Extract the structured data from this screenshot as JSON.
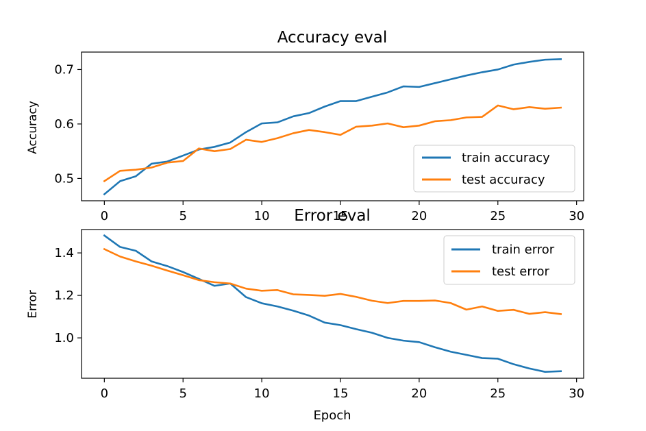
{
  "chart_data": [
    {
      "type": "line",
      "title": "Accuracy eval",
      "xlabel": "",
      "ylabel": "Accuracy",
      "xlim": [
        -1.45,
        30.45
      ],
      "ylim": [
        0.459,
        0.732
      ],
      "xticks": [
        0,
        5,
        10,
        15,
        20,
        25,
        30
      ],
      "xtick_labels": [
        "0",
        "5",
        "10",
        "15",
        "20",
        "25",
        "30"
      ],
      "yticks": [
        0.5,
        0.6,
        0.7
      ],
      "ytick_labels": [
        "0.5",
        "0.6",
        "0.7"
      ],
      "grid": false,
      "legend_position": "lower-right",
      "x": [
        0,
        1,
        2,
        3,
        4,
        5,
        6,
        7,
        8,
        9,
        10,
        11,
        12,
        13,
        14,
        15,
        16,
        17,
        18,
        19,
        20,
        21,
        22,
        23,
        24,
        25,
        26,
        27,
        28,
        29
      ],
      "series": [
        {
          "name": "train accuracy",
          "color": "#1f77b4",
          "values": [
            0.471,
            0.495,
            0.504,
            0.527,
            0.531,
            0.542,
            0.553,
            0.558,
            0.566,
            0.585,
            0.601,
            0.603,
            0.614,
            0.62,
            0.632,
            0.642,
            0.642,
            0.65,
            0.658,
            0.669,
            0.668,
            0.675,
            0.682,
            0.689,
            0.695,
            0.7,
            0.709,
            0.714,
            0.718,
            0.719
          ]
        },
        {
          "name": "test accuracy",
          "color": "#ff7f0e",
          "values": [
            0.495,
            0.514,
            0.516,
            0.52,
            0.529,
            0.532,
            0.555,
            0.55,
            0.554,
            0.571,
            0.567,
            0.574,
            0.583,
            0.589,
            0.585,
            0.58,
            0.595,
            0.597,
            0.601,
            0.594,
            0.597,
            0.605,
            0.607,
            0.612,
            0.613,
            0.634,
            0.627,
            0.631,
            0.628,
            0.63
          ]
        }
      ]
    },
    {
      "type": "line",
      "title": "Error eval",
      "xlabel": "Epoch",
      "ylabel": "Error",
      "xlim": [
        -1.45,
        30.45
      ],
      "ylim": [
        0.81,
        1.51
      ],
      "xticks": [
        0,
        5,
        10,
        15,
        20,
        25,
        30
      ],
      "xtick_labels": [
        "0",
        "5",
        "10",
        "15",
        "20",
        "25",
        "30"
      ],
      "yticks": [
        1.0,
        1.2,
        1.4
      ],
      "ytick_labels": [
        "1.0",
        "1.2",
        "1.4"
      ],
      "grid": false,
      "legend_position": "upper-right",
      "x": [
        0,
        1,
        2,
        3,
        4,
        5,
        6,
        7,
        8,
        9,
        10,
        11,
        12,
        13,
        14,
        15,
        16,
        17,
        18,
        19,
        20,
        21,
        22,
        23,
        24,
        25,
        26,
        27,
        28,
        29
      ],
      "series": [
        {
          "name": "train error",
          "color": "#1f77b4",
          "values": [
            1.482,
            1.428,
            1.41,
            1.36,
            1.338,
            1.31,
            1.278,
            1.245,
            1.256,
            1.192,
            1.163,
            1.148,
            1.128,
            1.105,
            1.072,
            1.06,
            1.041,
            1.024,
            1.0,
            0.987,
            0.98,
            0.956,
            0.935,
            0.92,
            0.905,
            0.902,
            0.876,
            0.856,
            0.84,
            0.843
          ]
        },
        {
          "name": "test error",
          "color": "#ff7f0e",
          "values": [
            1.418,
            1.383,
            1.36,
            1.34,
            1.317,
            1.295,
            1.272,
            1.262,
            1.256,
            1.232,
            1.222,
            1.225,
            1.205,
            1.202,
            1.198,
            1.207,
            1.193,
            1.175,
            1.164,
            1.174,
            1.174,
            1.176,
            1.164,
            1.133,
            1.148,
            1.127,
            1.132,
            1.113,
            1.121,
            1.112
          ]
        }
      ]
    }
  ]
}
